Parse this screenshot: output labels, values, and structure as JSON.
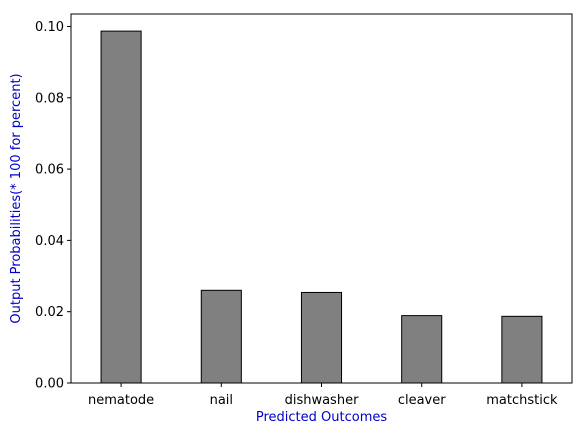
{
  "chart_data": {
    "type": "bar",
    "categories": [
      "nematode",
      "nail",
      "dishwasher",
      "cleaver",
      "matchstick"
    ],
    "values": [
      0.0987,
      0.026,
      0.0254,
      0.0189,
      0.0187
    ],
    "title": "",
    "xlabel": "Predicted Outcomes",
    "ylabel": "Output Probabilities(* 100 for percent)",
    "ylim": [
      0,
      0.1035
    ],
    "yticks": [
      0.0,
      0.02,
      0.04,
      0.06,
      0.08,
      0.1
    ],
    "ytick_labels": [
      "0.00",
      "0.02",
      "0.04",
      "0.06",
      "0.08",
      "0.10"
    ],
    "grid": false,
    "colors": {
      "bar_fill": "#808080",
      "bar_edge": "#000000",
      "label_color": "#0000cd"
    }
  }
}
